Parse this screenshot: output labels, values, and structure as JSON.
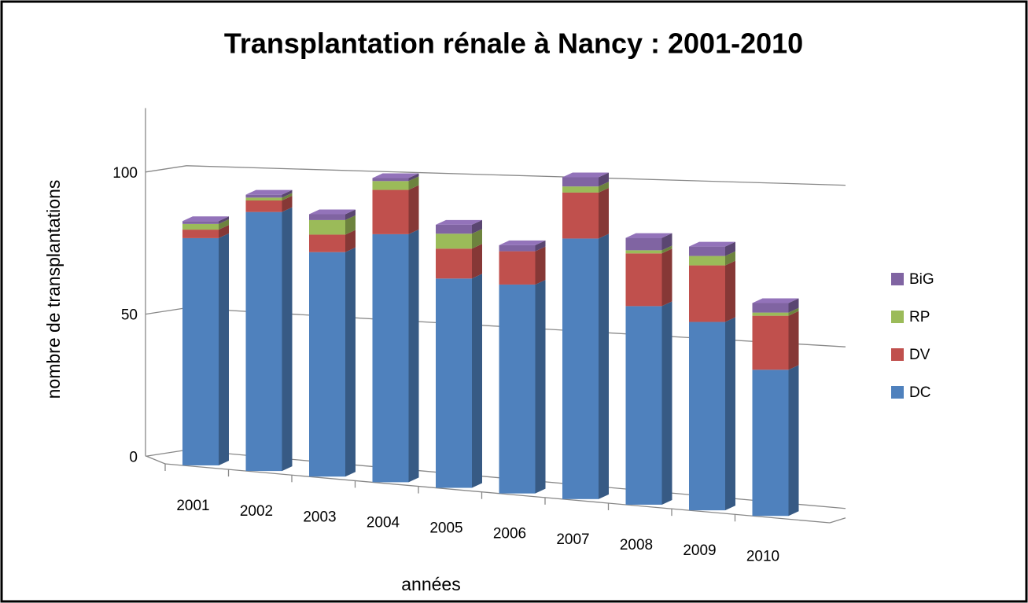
{
  "chart_data": {
    "type": "bar",
    "stacked": true,
    "title": "Transplantation rénale à Nancy : 2001-2010",
    "x_label": "années",
    "y_label": "nombre de transplantations",
    "categories": [
      "2001",
      "2002",
      "2003",
      "2004",
      "2005",
      "2006",
      "2007",
      "2008",
      "2009",
      "2010"
    ],
    "series": [
      {
        "name": "DC",
        "color": "#4f81bd",
        "values": [
          80,
          90,
          77,
          84,
          70,
          69,
          85,
          64,
          60,
          46
        ]
      },
      {
        "name": "DV",
        "color": "#c0504d",
        "values": [
          3,
          4,
          6,
          15,
          10,
          11,
          15,
          17,
          18,
          17
        ]
      },
      {
        "name": "RP",
        "color": "#9bbb59",
        "values": [
          2,
          1,
          5,
          3,
          5,
          0,
          2,
          1,
          3,
          1
        ]
      },
      {
        "name": "BiG",
        "color": "#8064a2",
        "values": [
          1,
          1,
          2,
          1,
          3,
          2,
          3,
          4,
          3,
          3
        ]
      }
    ],
    "ylim": [
      0,
      120
    ],
    "yticks": [
      0,
      50,
      100
    ],
    "grid": true,
    "legend": "right"
  }
}
